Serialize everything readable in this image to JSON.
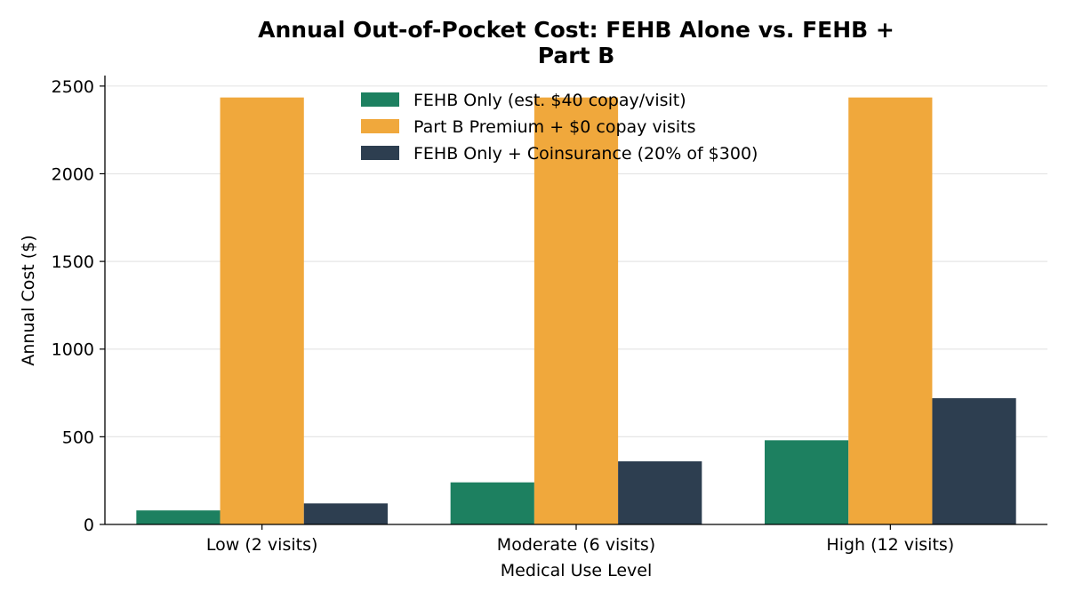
{
  "chart_data": {
    "type": "bar",
    "title_lines": [
      "Annual Out-of-Pocket Cost: FEHB Alone vs. FEHB +",
      "Part B"
    ],
    "xlabel": "Medical Use Level",
    "ylabel": "Annual Cost ($)",
    "categories": [
      "Low (2 visits)",
      "Moderate (6 visits)",
      "High (12 visits)"
    ],
    "ylim": [
      0,
      2560
    ],
    "yticks": [
      0,
      500,
      1000,
      1500,
      2000,
      2500
    ],
    "grid": "y",
    "legend_position": "top-center",
    "series": [
      {
        "name": "FEHB Only (est. $40 copay/visit)",
        "color": "#1d8060",
        "values": [
          80,
          240,
          480
        ]
      },
      {
        "name": "Part B Premium + $0 copay visits",
        "color": "#f0a83c",
        "values": [
          2435,
          2435,
          2435
        ]
      },
      {
        "name": "FEHB Only + Coinsurance (20% of $300)",
        "color": "#2d3e50",
        "values": [
          120,
          360,
          720
        ]
      }
    ]
  }
}
